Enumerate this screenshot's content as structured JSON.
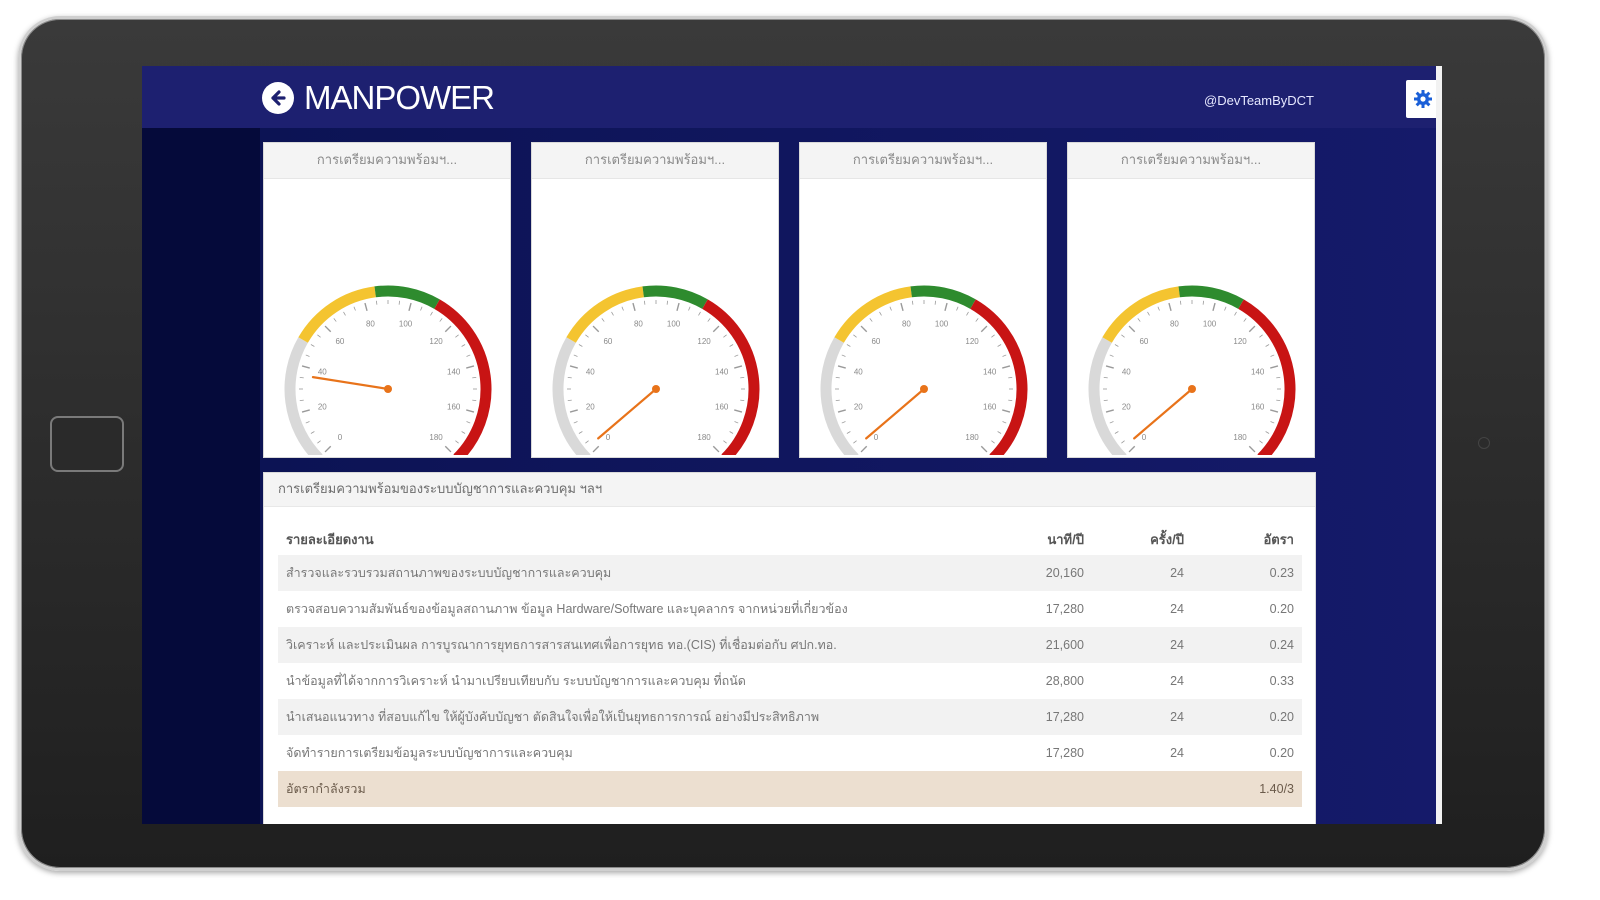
{
  "header": {
    "brand_title": "MANPOWER",
    "user_handle": "@DevTeamByDCT"
  },
  "colors": {
    "topbar": "#1d2070",
    "sidebar": "#050a3a",
    "gauge_gray": "#d9d9d9",
    "gauge_yellow": "#f4c430",
    "gauge_green": "#2e8b2e",
    "gauge_red": "#c81414",
    "needle": "#e8731a"
  },
  "icons": {
    "back": "arrow-left-circle-icon",
    "settings": "gear-icon"
  },
  "gauges": [
    {
      "title": "การเตรียมความพร้อมฯ...",
      "value": 36
    },
    {
      "title": "การเตรียมความพร้อมฯ...",
      "value": 3
    },
    {
      "title": "การเตรียมความพร้อมฯ...",
      "value": 3
    },
    {
      "title": "การเตรียมความพร้อมฯ...",
      "value": 3
    }
  ],
  "gauge_scale": {
    "min": 0,
    "max": 180,
    "tick_labels": [
      "0",
      "20",
      "40",
      "60",
      "80",
      "100",
      "120",
      "140",
      "160",
      "180"
    ],
    "bands": [
      {
        "from": 0,
        "to": 50,
        "color": "gray"
      },
      {
        "from": 50,
        "to": 85,
        "color": "yellow"
      },
      {
        "from": 85,
        "to": 110,
        "color": "green"
      },
      {
        "from": 110,
        "to": 180,
        "color": "red"
      }
    ]
  },
  "table": {
    "title": "การเตรียมความพร้อมของระบบบัญชาการและควบคุม ฯลฯ",
    "headers": [
      "รายละเอียดงาน",
      "นาที/ปี",
      "ครั้ง/ปี",
      "อัตรา"
    ],
    "rows": [
      [
        "สำรวจและรวบรวมสถานภาพของระบบบัญชาการและควบคุม",
        "20,160",
        "24",
        "0.23"
      ],
      [
        "ตรวจสอบความสัมพันธ์ของข้อมูลสถานภาพ ข้อมูล Hardware/Software และบุคลากร จากหน่วยที่เกี่ยวข้อง",
        "17,280",
        "24",
        "0.20"
      ],
      [
        "วิเคราะห์ และประเมินผล การบูรณาการยุทธการสารสนเทศเพื่อการยุทธ ทอ.(CIS) ที่เชื่อมต่อกับ ศปก.ทอ.",
        "21,600",
        "24",
        "0.24"
      ],
      [
        "นำข้อมูลที่ได้จากการวิเคราะห์ นำมาเปรียบเทียบกับ ระบบบัญชาการและควบคุม ที่ถนัด",
        "28,800",
        "24",
        "0.33"
      ],
      [
        "นำเสนอแนวทาง ที่สอบแก้ไข ให้ผู้บังคับบัญชา ตัดสินใจเพื่อให้เป็นยุทธการการณ์ อย่างมีประสิทธิภาพ",
        "17,280",
        "24",
        "0.20"
      ],
      [
        "จัดทำรายการเตรียมข้อมูลระบบบัญชาการและควบคุม",
        "17,280",
        "24",
        "0.20"
      ]
    ],
    "total_label": "อัตรากำลังรวม",
    "total_value": "1.40/3"
  }
}
